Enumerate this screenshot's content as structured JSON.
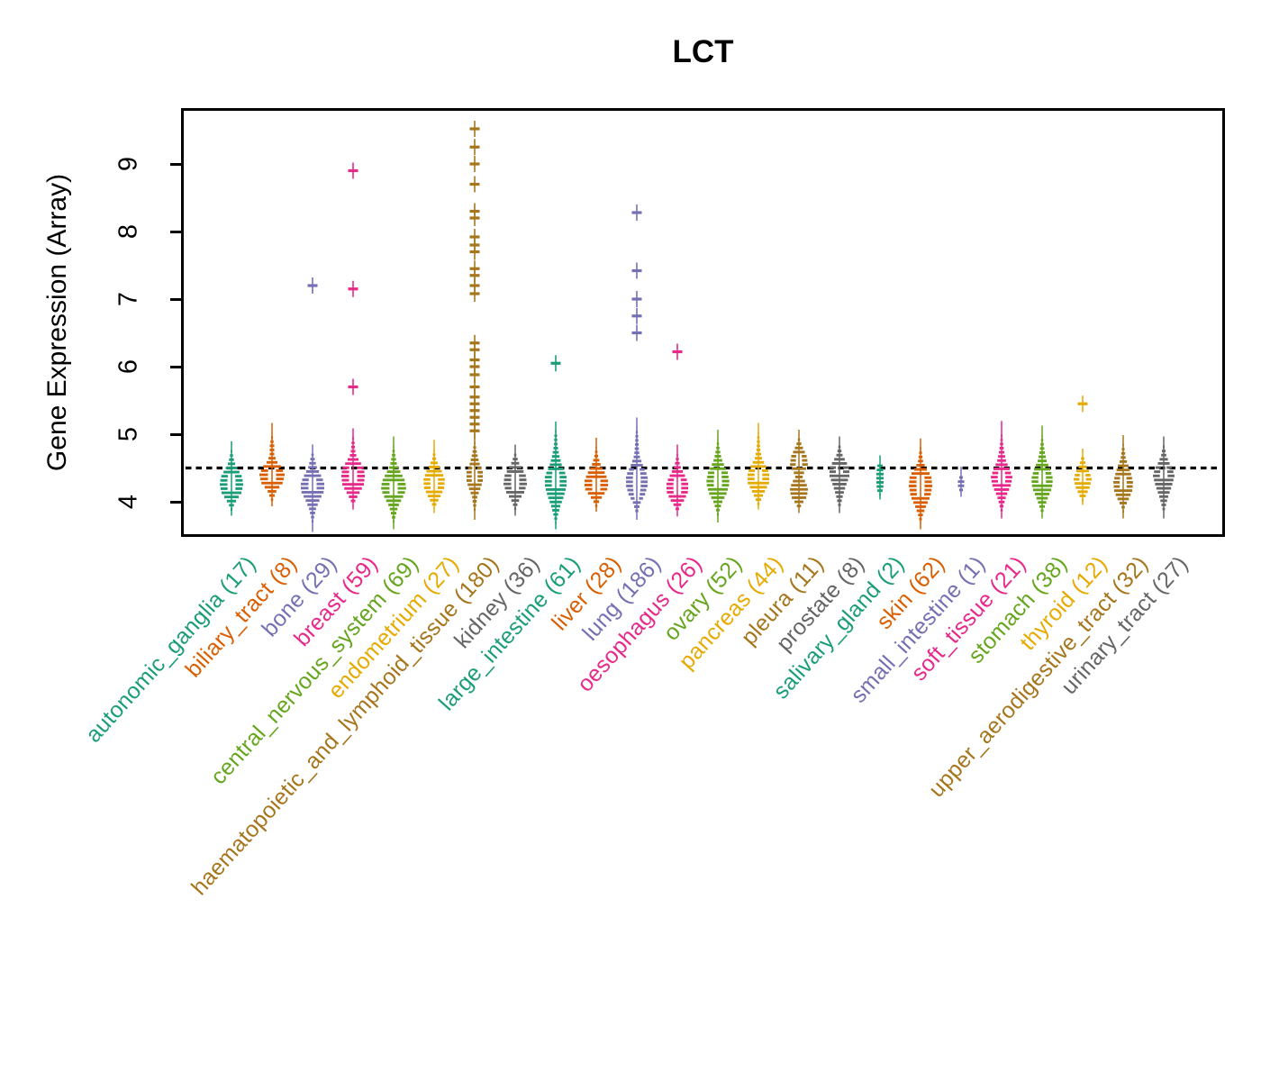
{
  "chart_data": {
    "type": "beeswarm-violin",
    "title": "LCT",
    "ylabel": "Gene Expression (Array)",
    "ylim": [
      3.5,
      9.75
    ],
    "yticks": [
      4,
      5,
      6,
      7,
      8,
      9
    ],
    "reference_line": 4.5,
    "grid": false,
    "legend": "none",
    "palette": [
      "#1B9E77",
      "#D95F02",
      "#7570B3",
      "#E7298A",
      "#66A61E",
      "#E6AB02",
      "#A6761D",
      "#666666"
    ],
    "categories": [
      {
        "label": "autonomic_ganglia",
        "count": 17,
        "color": "#1B9E77",
        "body": [
          [
            3.86,
            0
          ],
          [
            3.95,
            2
          ],
          [
            4.05,
            6
          ],
          [
            4.15,
            11
          ],
          [
            4.27,
            13
          ],
          [
            4.38,
            12
          ],
          [
            4.48,
            8
          ],
          [
            4.58,
            4
          ],
          [
            4.68,
            2
          ],
          [
            4.83,
            0
          ]
        ],
        "hole": [
          4.18,
          4.42
        ],
        "outliers": []
      },
      {
        "label": "biliary_tract",
        "count": 8,
        "color": "#D95F02",
        "body": [
          [
            4.0,
            0
          ],
          [
            4.08,
            2
          ],
          [
            4.18,
            5
          ],
          [
            4.3,
            12
          ],
          [
            4.42,
            14
          ],
          [
            4.52,
            11
          ],
          [
            4.62,
            5
          ],
          [
            4.72,
            2.5
          ],
          [
            4.85,
            2.5
          ],
          [
            4.95,
            1.2
          ],
          [
            5.1,
            0
          ]
        ],
        "hole": [
          4.32,
          4.5
        ],
        "outliers": []
      },
      {
        "label": "bone",
        "count": 29,
        "color": "#7570B3",
        "body": [
          [
            3.62,
            0
          ],
          [
            3.78,
            1.5
          ],
          [
            3.92,
            4
          ],
          [
            4.05,
            8
          ],
          [
            4.18,
            13
          ],
          [
            4.3,
            13
          ],
          [
            4.42,
            9
          ],
          [
            4.52,
            5
          ],
          [
            4.65,
            2.5
          ],
          [
            4.78,
            0
          ]
        ],
        "hole": [
          4.2,
          4.38
        ],
        "outliers": [
          7.2
        ]
      },
      {
        "label": "breast",
        "count": 59,
        "color": "#E7298A",
        "body": [
          [
            3.95,
            0
          ],
          [
            4.05,
            3
          ],
          [
            4.15,
            7
          ],
          [
            4.27,
            12
          ],
          [
            4.4,
            13
          ],
          [
            4.52,
            12
          ],
          [
            4.62,
            7
          ],
          [
            4.72,
            3
          ],
          [
            4.82,
            2
          ],
          [
            4.92,
            1.5
          ],
          [
            5.02,
            0
          ]
        ],
        "hole": [
          4.3,
          4.55
        ],
        "outliers": [
          5.7,
          7.15,
          8.9
        ]
      },
      {
        "label": "central_nervous_system",
        "count": 69,
        "color": "#66A61E",
        "body": [
          [
            3.66,
            0
          ],
          [
            3.8,
            2
          ],
          [
            3.95,
            5
          ],
          [
            4.08,
            10
          ],
          [
            4.2,
            14
          ],
          [
            4.32,
            13
          ],
          [
            4.45,
            8
          ],
          [
            4.55,
            4
          ],
          [
            4.7,
            2
          ],
          [
            4.9,
            0
          ]
        ],
        "hole": [
          4.14,
          4.32
        ],
        "outliers": []
      },
      {
        "label": "endometrium",
        "count": 27,
        "color": "#E6AB02",
        "body": [
          [
            3.9,
            0
          ],
          [
            4.0,
            3
          ],
          [
            4.1,
            7
          ],
          [
            4.22,
            11
          ],
          [
            4.34,
            12
          ],
          [
            4.46,
            9
          ],
          [
            4.56,
            5
          ],
          [
            4.66,
            2
          ],
          [
            4.85,
            0
          ]
        ],
        "hole": [
          4.22,
          4.4
        ],
        "outliers": []
      },
      {
        "label": "haematopoietic_and_lymphoid_tissue",
        "count": 180,
        "color": "#A6761D",
        "body": [
          [
            3.8,
            0
          ],
          [
            3.95,
            1.5
          ],
          [
            4.1,
            3
          ],
          [
            4.2,
            6
          ],
          [
            4.32,
            9
          ],
          [
            4.46,
            9
          ],
          [
            4.6,
            5
          ],
          [
            4.75,
            2.5
          ],
          [
            4.95,
            0
          ]
        ],
        "hole": [
          4.3,
          4.56
        ],
        "outliers": [
          5.05,
          5.15,
          5.25,
          5.35,
          5.45,
          5.55,
          5.7,
          5.88,
          6.0,
          6.1,
          6.25,
          6.35,
          7.08,
          7.2,
          7.35,
          7.45,
          7.7,
          7.8,
          7.92,
          8.2,
          8.3,
          8.7,
          9.0,
          9.25,
          9.52
        ]
      },
      {
        "label": "kidney",
        "count": 36,
        "color": "#666666",
        "body": [
          [
            3.86,
            0
          ],
          [
            3.96,
            2
          ],
          [
            4.06,
            5
          ],
          [
            4.16,
            10
          ],
          [
            4.28,
            13
          ],
          [
            4.4,
            12
          ],
          [
            4.5,
            8
          ],
          [
            4.6,
            4
          ],
          [
            4.7,
            1.5
          ],
          [
            4.78,
            0
          ]
        ],
        "hole": [
          4.2,
          4.42
        ],
        "outliers": []
      },
      {
        "label": "large_intestine",
        "count": 61,
        "color": "#1B9E77",
        "body": [
          [
            3.66,
            0
          ],
          [
            3.8,
            2
          ],
          [
            3.95,
            5
          ],
          [
            4.1,
            9
          ],
          [
            4.25,
            12
          ],
          [
            4.4,
            12
          ],
          [
            4.55,
            7
          ],
          [
            4.7,
            4
          ],
          [
            4.85,
            2
          ],
          [
            5.0,
            1.5
          ],
          [
            5.12,
            0
          ]
        ],
        "hole": [
          4.25,
          4.47
        ],
        "outliers": [
          6.05
        ]
      },
      {
        "label": "liver",
        "count": 28,
        "color": "#D95F02",
        "body": [
          [
            3.92,
            0
          ],
          [
            4.02,
            3
          ],
          [
            4.12,
            8
          ],
          [
            4.22,
            13
          ],
          [
            4.34,
            13
          ],
          [
            4.46,
            9
          ],
          [
            4.56,
            5
          ],
          [
            4.7,
            2
          ],
          [
            4.88,
            0
          ]
        ],
        "hole": [
          4.2,
          4.38
        ],
        "outliers": []
      },
      {
        "label": "lung",
        "count": 186,
        "color": "#7570B3",
        "body": [
          [
            3.8,
            0
          ],
          [
            3.9,
            2
          ],
          [
            4.0,
            4
          ],
          [
            4.12,
            9
          ],
          [
            4.26,
            12
          ],
          [
            4.4,
            12
          ],
          [
            4.55,
            7
          ],
          [
            4.7,
            3
          ],
          [
            4.85,
            2
          ],
          [
            5.0,
            1.5
          ],
          [
            5.18,
            0
          ]
        ],
        "hole": [
          4.02,
          4.55
        ],
        "outliers": [
          6.5,
          6.75,
          7.0,
          7.42,
          8.28
        ]
      },
      {
        "label": "oesophagus",
        "count": 26,
        "color": "#E7298A",
        "body": [
          [
            3.85,
            0
          ],
          [
            3.95,
            3
          ],
          [
            4.05,
            8
          ],
          [
            4.17,
            12
          ],
          [
            4.3,
            12
          ],
          [
            4.42,
            8
          ],
          [
            4.52,
            4
          ],
          [
            4.62,
            2
          ],
          [
            4.78,
            0
          ]
        ],
        "hole": [
          4.12,
          4.35
        ],
        "outliers": [
          6.22
        ]
      },
      {
        "label": "ovary",
        "count": 52,
        "color": "#66A61E",
        "body": [
          [
            3.76,
            0
          ],
          [
            3.9,
            2
          ],
          [
            4.02,
            5
          ],
          [
            4.15,
            10
          ],
          [
            4.3,
            13
          ],
          [
            4.45,
            11
          ],
          [
            4.56,
            7
          ],
          [
            4.66,
            4
          ],
          [
            4.8,
            2
          ],
          [
            5.0,
            0
          ]
        ],
        "hole": [
          4.25,
          4.47
        ],
        "outliers": []
      },
      {
        "label": "pancreas",
        "count": 44,
        "color": "#E6AB02",
        "body": [
          [
            3.95,
            0
          ],
          [
            4.05,
            3
          ],
          [
            4.17,
            7
          ],
          [
            4.3,
            12
          ],
          [
            4.45,
            12
          ],
          [
            4.56,
            8
          ],
          [
            4.66,
            4
          ],
          [
            4.8,
            2
          ],
          [
            4.95,
            1.5
          ],
          [
            5.1,
            0
          ]
        ],
        "hole": [
          4.3,
          4.5
        ],
        "outliers": []
      },
      {
        "label": "pleura",
        "count": 11,
        "color": "#A6761D",
        "body": [
          [
            3.9,
            0
          ],
          [
            4.0,
            4
          ],
          [
            4.1,
            9
          ],
          [
            4.2,
            10
          ],
          [
            4.3,
            8
          ],
          [
            4.38,
            4
          ],
          [
            4.46,
            6
          ],
          [
            4.56,
            10
          ],
          [
            4.68,
            9
          ],
          [
            4.8,
            5
          ],
          [
            4.9,
            2
          ],
          [
            5.0,
            0
          ]
        ],
        "hole": [
          4.56,
          4.72
        ],
        "outliers": []
      },
      {
        "label": "prostate",
        "count": 8,
        "color": "#666666",
        "body": [
          [
            3.9,
            0
          ],
          [
            4.0,
            2
          ],
          [
            4.12,
            4
          ],
          [
            4.25,
            7
          ],
          [
            4.4,
            11
          ],
          [
            4.52,
            11
          ],
          [
            4.62,
            7
          ],
          [
            4.72,
            3
          ],
          [
            4.82,
            1.5
          ],
          [
            4.9,
            0
          ]
        ],
        "hole": [
          4.42,
          4.58
        ],
        "outliers": []
      },
      {
        "label": "salivary_gland",
        "count": 2,
        "color": "#1B9E77",
        "body": [
          [
            4.1,
            0
          ],
          [
            4.2,
            3.5
          ],
          [
            4.3,
            4
          ],
          [
            4.45,
            4
          ],
          [
            4.55,
            3
          ],
          [
            4.62,
            0
          ]
        ],
        "hole": null,
        "outliers": []
      },
      {
        "label": "skin",
        "count": 62,
        "color": "#D95F02",
        "body": [
          [
            3.66,
            0
          ],
          [
            3.8,
            2
          ],
          [
            3.95,
            6
          ],
          [
            4.1,
            11
          ],
          [
            4.25,
            13
          ],
          [
            4.4,
            12
          ],
          [
            4.5,
            7
          ],
          [
            4.6,
            3
          ],
          [
            4.75,
            1.5
          ],
          [
            4.87,
            0
          ]
        ],
        "hole": [
          4.1,
          4.42
        ],
        "outliers": []
      },
      {
        "label": "small_intestine",
        "count": 1,
        "color": "#7570B3",
        "body": [
          [
            4.14,
            0
          ],
          [
            4.22,
            3
          ],
          [
            4.3,
            4
          ],
          [
            4.38,
            2
          ],
          [
            4.45,
            0
          ]
        ],
        "hole": null,
        "outliers": []
      },
      {
        "label": "soft_tissue",
        "count": 21,
        "color": "#E7298A",
        "body": [
          [
            3.82,
            0
          ],
          [
            3.95,
            2
          ],
          [
            4.1,
            5
          ],
          [
            4.25,
            10
          ],
          [
            4.38,
            12
          ],
          [
            4.5,
            9
          ],
          [
            4.62,
            5
          ],
          [
            4.75,
            3
          ],
          [
            4.9,
            1.5
          ],
          [
            5.13,
            0
          ]
        ],
        "hole": [
          4.3,
          4.47
        ],
        "outliers": []
      },
      {
        "label": "stomach",
        "count": 38,
        "color": "#66A61E",
        "body": [
          [
            3.82,
            0
          ],
          [
            3.95,
            3
          ],
          [
            4.1,
            7
          ],
          [
            4.22,
            11
          ],
          [
            4.36,
            12
          ],
          [
            4.5,
            9
          ],
          [
            4.62,
            5
          ],
          [
            4.75,
            3
          ],
          [
            4.9,
            1.5
          ],
          [
            5.06,
            0
          ]
        ],
        "hole": [
          4.26,
          4.46
        ],
        "outliers": []
      },
      {
        "label": "thyroid",
        "count": 12,
        "color": "#E6AB02",
        "body": [
          [
            4.02,
            0
          ],
          [
            4.12,
            4
          ],
          [
            4.24,
            8
          ],
          [
            4.35,
            10
          ],
          [
            4.45,
            8
          ],
          [
            4.55,
            4
          ],
          [
            4.65,
            2
          ],
          [
            4.72,
            0
          ]
        ],
        "hole": [
          4.3,
          4.46
        ],
        "outliers": [
          5.45
        ]
      },
      {
        "label": "upper_aerodigestive_tract",
        "count": 32,
        "color": "#A6761D",
        "body": [
          [
            3.82,
            0
          ],
          [
            3.95,
            2
          ],
          [
            4.05,
            6
          ],
          [
            4.18,
            10
          ],
          [
            4.3,
            11
          ],
          [
            4.42,
            9
          ],
          [
            4.55,
            6
          ],
          [
            4.65,
            3
          ],
          [
            4.8,
            1.5
          ],
          [
            4.92,
            0
          ]
        ],
        "hole": [
          4.2,
          4.42
        ],
        "outliers": []
      },
      {
        "label": "urinary_tract",
        "count": 27,
        "color": "#666666",
        "body": [
          [
            3.82,
            0
          ],
          [
            3.95,
            2
          ],
          [
            4.1,
            5
          ],
          [
            4.25,
            9
          ],
          [
            4.4,
            12
          ],
          [
            4.5,
            10
          ],
          [
            4.6,
            6
          ],
          [
            4.7,
            3
          ],
          [
            4.8,
            1.5
          ],
          [
            4.9,
            0
          ]
        ],
        "hole": [
          4.36,
          4.56
        ],
        "outliers": []
      }
    ]
  }
}
